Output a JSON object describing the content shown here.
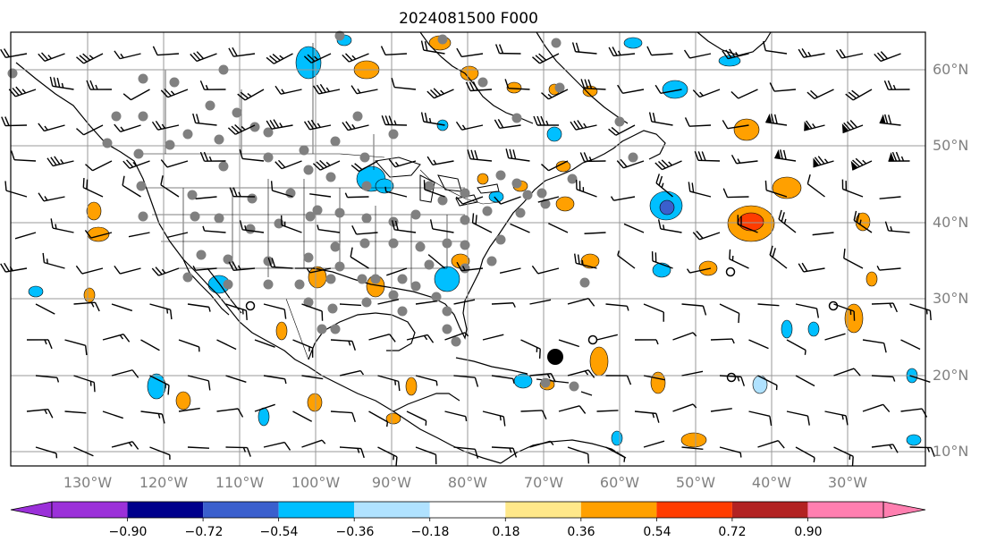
{
  "title": "2024081500 F000",
  "longitude_labels": [
    "130°W",
    "120°W",
    "110°W",
    "100°W",
    "90°W",
    "80°W",
    "70°W",
    "60°W",
    "50°W",
    "40°W",
    "30°W"
  ],
  "latitude_labels": [
    "60°N",
    "50°N",
    "40°N",
    "30°N",
    "20°N",
    "10°N"
  ],
  "colorbar": {
    "tick_labels": [
      "−0.90",
      "−0.72",
      "−0.54",
      "−0.36",
      "−0.18",
      "0.18",
      "0.36",
      "0.54",
      "0.72",
      "0.90"
    ],
    "colors": [
      "#9b30d9",
      "#00008b",
      "#3a5fcd",
      "#00bfff",
      "#b0e2ff",
      "#ffffff",
      "#ffe88a",
      "#ffa000",
      "#ff3c00",
      "#b22222",
      "#ff7fb0"
    ]
  },
  "colors": {
    "grid": "#999999",
    "coast": "#000000",
    "station": "#808080",
    "barb": "#000000"
  }
}
